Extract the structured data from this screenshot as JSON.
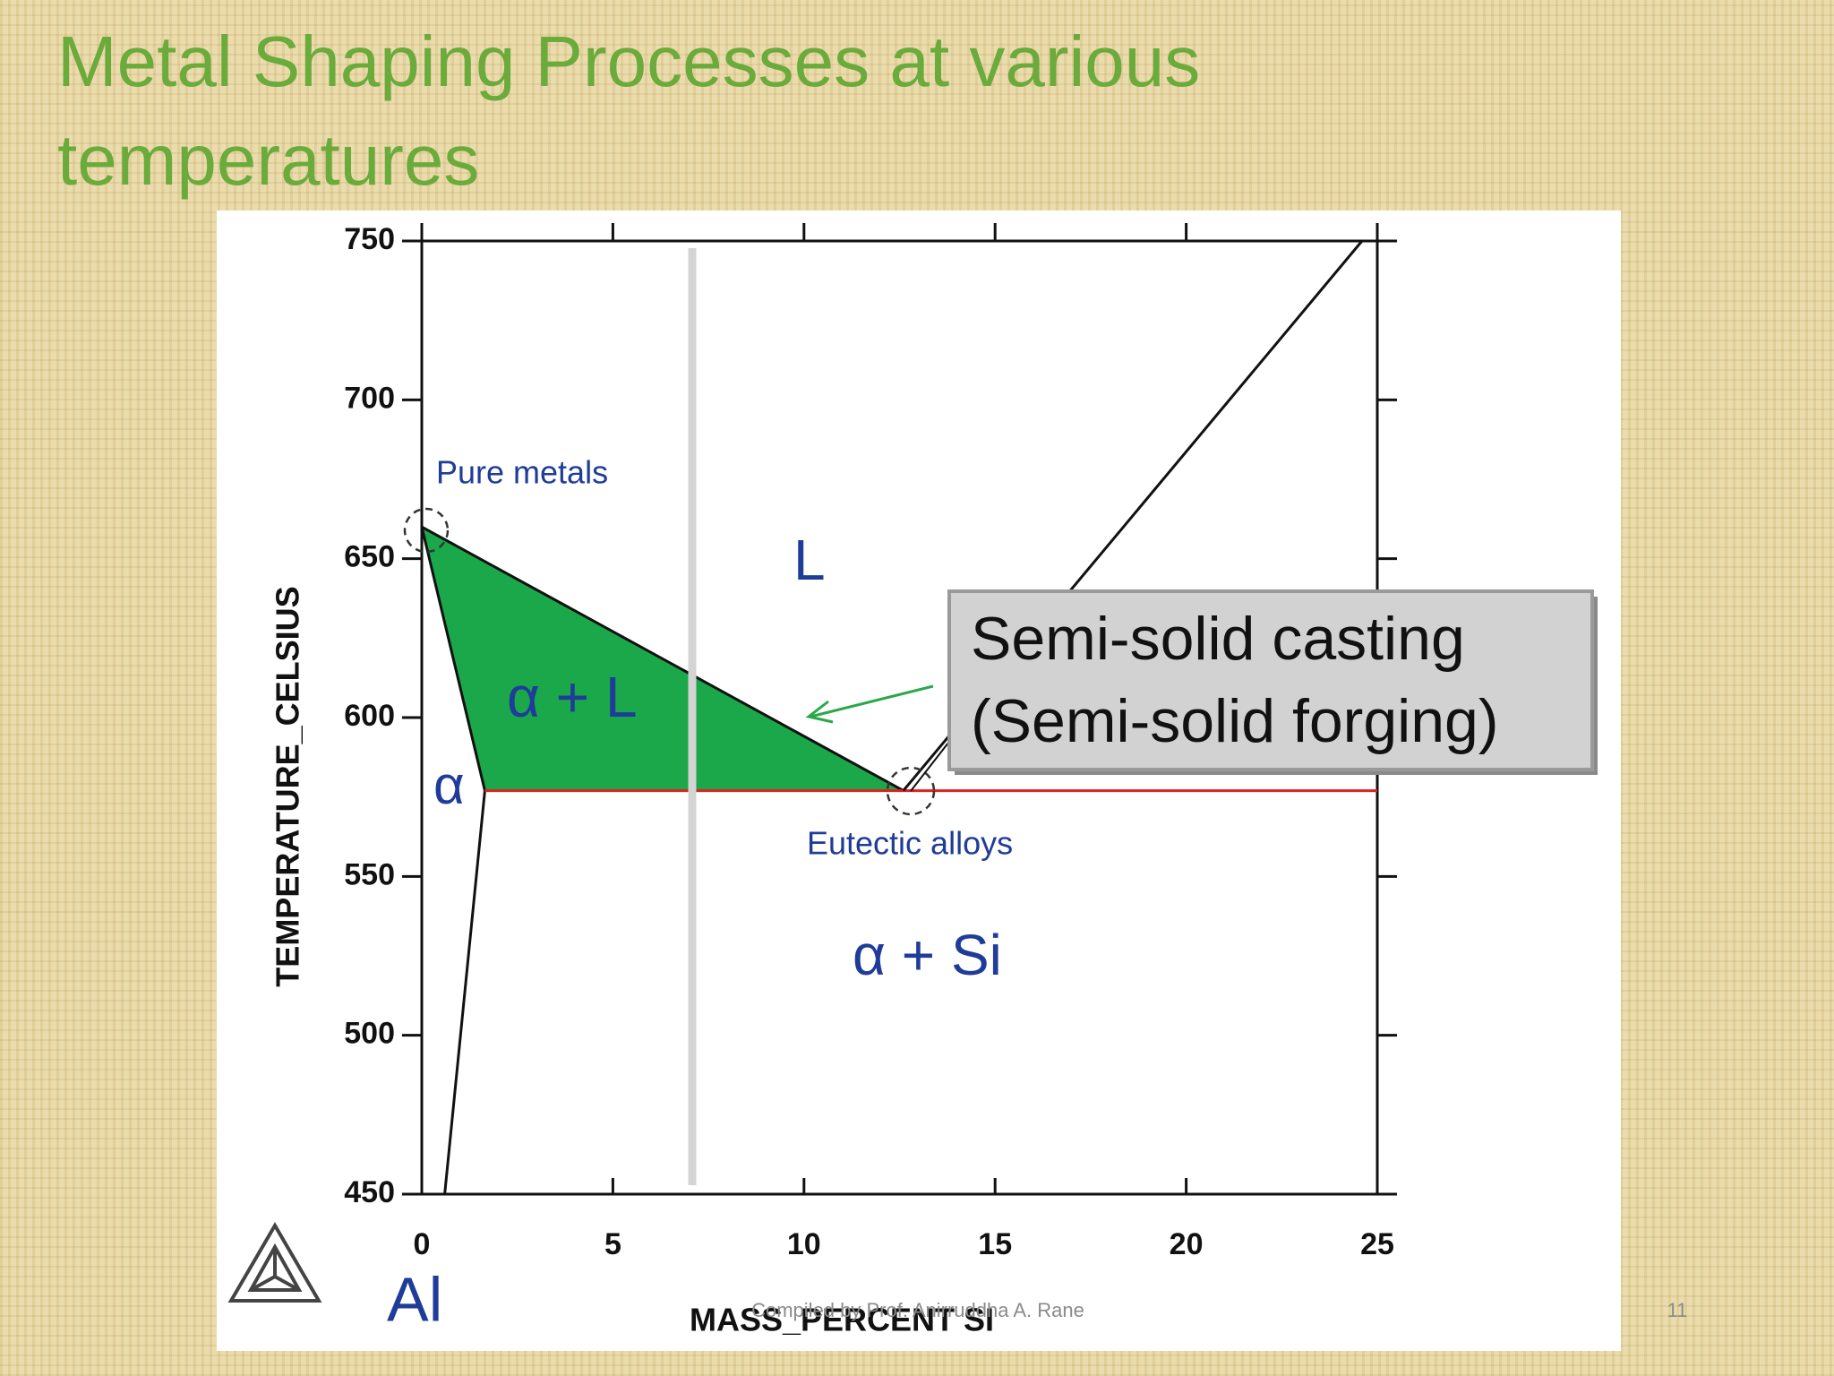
{
  "slide": {
    "title": "Metal Shaping Processes at various temperatures",
    "footer": "Compiled by Prof. Anirruddha A. Rane",
    "page_number": "11"
  },
  "chart_data": {
    "type": "line",
    "x_label": "MASS_PERCENT SI",
    "y_label": "TEMPERATURE_CELSIUS",
    "xlim": [
      0,
      25
    ],
    "xticks": [
      0,
      5,
      10,
      15,
      20,
      25
    ],
    "ylim": [
      450,
      750
    ],
    "yticks": [
      450,
      500,
      550,
      600,
      650,
      700,
      750
    ],
    "fill_color": "#1aa84a",
    "series": [
      {
        "color": "#111111",
        "x": [
          0,
          12.6
        ],
        "values": [
          660,
          577
        ]
      },
      {
        "color": "#111111",
        "x": [
          0,
          1.65
        ],
        "values": [
          660,
          577
        ]
      },
      {
        "color": "#111111",
        "x": [
          1.65,
          0.6
        ],
        "values": [
          577,
          450
        ]
      },
      {
        "color": "#e02020",
        "x": [
          1.65,
          25
        ],
        "values": [
          577,
          577
        ]
      },
      {
        "color": "#111111",
        "x": [
          12.6,
          24.6
        ],
        "values": [
          577,
          750
        ]
      }
    ],
    "annotations": [
      "Pure metals",
      "L",
      "α + L",
      "α",
      "Eutectic alloys",
      "α + Si",
      "Semi-solid casting",
      "(Semi-solid forging)",
      "Al"
    ]
  }
}
